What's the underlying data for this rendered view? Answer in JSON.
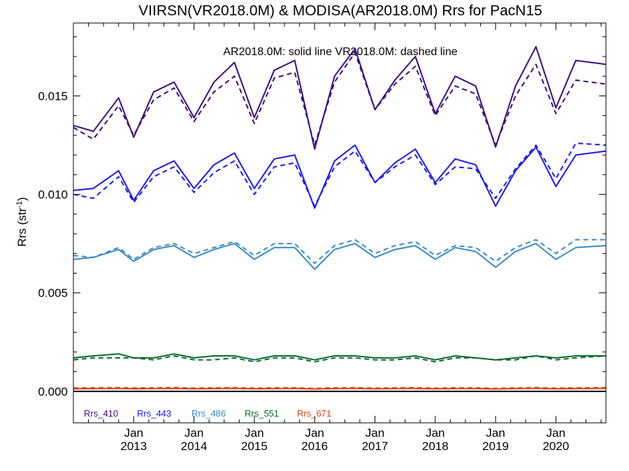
{
  "chart_data": {
    "type": "line",
    "title": "VIIRSN(VR2018.0M) & MODISA(AR2018.0M)  Rrs for PacN15",
    "subtitle": "AR2018.0M: solid line   VR2018.0M: dashed line",
    "ylabel": "Rrs (str",
    "ylabel_sup": "-1",
    "ylabel_close": ")",
    "ylim": [
      -0.0016,
      0.0187
    ],
    "xlim": [
      2012.0,
      2020.83
    ],
    "yticks": [
      {
        "value": 0.0,
        "label": "0.000"
      },
      {
        "value": 0.005,
        "label": "0.005"
      },
      {
        "value": 0.01,
        "label": "0.010"
      },
      {
        "value": 0.015,
        "label": "0.015"
      }
    ],
    "xticks": [
      {
        "value": 2013.0,
        "month": "Jan",
        "year": "2013"
      },
      {
        "value": 2014.0,
        "month": "Jan",
        "year": "2014"
      },
      {
        "value": 2015.0,
        "month": "Jan",
        "year": "2015"
      },
      {
        "value": 2016.0,
        "month": "Jan",
        "year": "2016"
      },
      {
        "value": 2017.0,
        "month": "Jan",
        "year": "2017"
      },
      {
        "value": 2018.0,
        "month": "Jan",
        "year": "2018"
      },
      {
        "value": 2019.0,
        "month": "Jan",
        "year": "2019"
      },
      {
        "value": 2020.0,
        "month": "Jan",
        "year": "2020"
      }
    ],
    "legend_position": "bottom-left",
    "zero_line": 0.0,
    "series": [
      {
        "name": "Rrs_410",
        "color": "#3a0f7a",
        "x": [
          2012.0,
          2012.33,
          2012.75,
          2013.0,
          2013.33,
          2013.67,
          2014.0,
          2014.33,
          2014.67,
          2015.0,
          2015.33,
          2015.67,
          2016.0,
          2016.33,
          2016.67,
          2017.0,
          2017.33,
          2017.67,
          2018.0,
          2018.33,
          2018.67,
          2019.0,
          2019.33,
          2019.67,
          2020.0,
          2020.33,
          2020.83
        ],
        "solid": [
          0.0135,
          0.0132,
          0.0149,
          0.0129,
          0.0152,
          0.0157,
          0.0139,
          0.0157,
          0.0167,
          0.0139,
          0.0163,
          0.0168,
          0.0123,
          0.016,
          0.0174,
          0.0143,
          0.0158,
          0.017,
          0.0141,
          0.016,
          0.0155,
          0.0124,
          0.0155,
          0.0175,
          0.0144,
          0.0168,
          0.0166
        ],
        "dashed": [
          0.0134,
          0.0128,
          0.0145,
          0.013,
          0.0148,
          0.0154,
          0.0137,
          0.0152,
          0.016,
          0.0136,
          0.0159,
          0.0162,
          0.0125,
          0.0157,
          0.0172,
          0.0143,
          0.0156,
          0.0165,
          0.014,
          0.0155,
          0.0151,
          0.0125,
          0.015,
          0.0166,
          0.0141,
          0.0158,
          0.0156
        ]
      },
      {
        "name": "Rrs_443",
        "color": "#1a1aea",
        "x": [
          2012.0,
          2012.33,
          2012.75,
          2013.0,
          2013.33,
          2013.67,
          2014.0,
          2014.33,
          2014.67,
          2015.0,
          2015.33,
          2015.67,
          2016.0,
          2016.33,
          2016.67,
          2017.0,
          2017.33,
          2017.67,
          2018.0,
          2018.33,
          2018.67,
          2019.0,
          2019.33,
          2019.67,
          2020.0,
          2020.33,
          2020.83
        ],
        "solid": [
          0.0102,
          0.0103,
          0.0112,
          0.0097,
          0.0112,
          0.0117,
          0.0103,
          0.0115,
          0.0121,
          0.0103,
          0.0118,
          0.012,
          0.0093,
          0.0117,
          0.0125,
          0.0106,
          0.0116,
          0.0123,
          0.0106,
          0.0118,
          0.0115,
          0.0094,
          0.0112,
          0.0124,
          0.0104,
          0.012,
          0.0122
        ],
        "dashed": [
          0.01,
          0.0098,
          0.0109,
          0.0096,
          0.0109,
          0.0114,
          0.0101,
          0.0111,
          0.0117,
          0.01,
          0.0114,
          0.0116,
          0.0094,
          0.0114,
          0.0122,
          0.0106,
          0.0114,
          0.012,
          0.0105,
          0.0114,
          0.0113,
          0.0098,
          0.0113,
          0.0125,
          0.0108,
          0.0126,
          0.0125
        ]
      },
      {
        "name": "Rrs_486",
        "color": "#3a8ac4",
        "x": [
          2012.0,
          2012.33,
          2012.75,
          2013.0,
          2013.33,
          2013.67,
          2014.0,
          2014.33,
          2014.67,
          2015.0,
          2015.33,
          2015.67,
          2016.0,
          2016.33,
          2016.67,
          2017.0,
          2017.33,
          2017.67,
          2018.0,
          2018.33,
          2018.67,
          2019.0,
          2019.33,
          2019.67,
          2020.0,
          2020.33,
          2020.83
        ],
        "solid": [
          0.0067,
          0.0068,
          0.0072,
          0.0066,
          0.0072,
          0.0074,
          0.0068,
          0.0072,
          0.0075,
          0.0067,
          0.0073,
          0.0073,
          0.0062,
          0.0072,
          0.0075,
          0.0068,
          0.0072,
          0.0074,
          0.0067,
          0.0073,
          0.0071,
          0.0063,
          0.0071,
          0.0075,
          0.0067,
          0.0073,
          0.0074
        ],
        "dashed": [
          0.0069,
          0.0068,
          0.0073,
          0.0067,
          0.0073,
          0.0075,
          0.007,
          0.0073,
          0.0076,
          0.0069,
          0.0075,
          0.0075,
          0.0065,
          0.0074,
          0.0077,
          0.007,
          0.0074,
          0.0076,
          0.0069,
          0.0074,
          0.0073,
          0.0066,
          0.0073,
          0.0077,
          0.007,
          0.0077,
          0.0077
        ]
      },
      {
        "name": "Rrs_551",
        "color": "#0a6a2a",
        "x": [
          2012.0,
          2012.33,
          2012.75,
          2013.0,
          2013.33,
          2013.67,
          2014.0,
          2014.33,
          2014.67,
          2015.0,
          2015.33,
          2015.67,
          2016.0,
          2016.33,
          2016.67,
          2017.0,
          2017.33,
          2017.67,
          2018.0,
          2018.33,
          2018.67,
          2019.0,
          2019.33,
          2019.67,
          2020.0,
          2020.33,
          2020.83
        ],
        "solid": [
          0.0017,
          0.0018,
          0.0019,
          0.0017,
          0.0017,
          0.0019,
          0.0017,
          0.0018,
          0.0018,
          0.0016,
          0.0018,
          0.0018,
          0.0016,
          0.0018,
          0.0018,
          0.0017,
          0.0017,
          0.0018,
          0.0016,
          0.0018,
          0.0017,
          0.0016,
          0.0017,
          0.0018,
          0.0017,
          0.0018,
          0.0018
        ],
        "dashed": [
          0.0016,
          0.0017,
          0.0017,
          0.0017,
          0.0016,
          0.0018,
          0.0016,
          0.0016,
          0.0017,
          0.0015,
          0.0017,
          0.0017,
          0.0015,
          0.0017,
          0.0017,
          0.0016,
          0.0016,
          0.0017,
          0.0015,
          0.0017,
          0.0017,
          0.0016,
          0.0016,
          0.0018,
          0.0016,
          0.0017,
          0.0018
        ]
      },
      {
        "name": "Rrs_671",
        "color": "#d8441a",
        "x": [
          2012.0,
          2012.33,
          2012.75,
          2013.0,
          2013.33,
          2013.67,
          2014.0,
          2014.33,
          2014.67,
          2015.0,
          2015.33,
          2015.67,
          2016.0,
          2016.33,
          2016.67,
          2017.0,
          2017.33,
          2017.67,
          2018.0,
          2018.33,
          2018.67,
          2019.0,
          2019.33,
          2019.67,
          2020.0,
          2020.33,
          2020.83
        ],
        "solid": [
          0.00013,
          0.00014,
          0.00015,
          0.00013,
          0.00014,
          0.00015,
          0.00013,
          0.00014,
          0.00015,
          0.00013,
          0.00014,
          0.00015,
          0.00012,
          0.00014,
          0.00015,
          0.00013,
          0.00014,
          0.00015,
          0.00013,
          0.00014,
          0.00014,
          0.00012,
          0.00014,
          0.00015,
          0.00013,
          0.00014,
          0.00015
        ],
        "dashed": [
          0.00017,
          0.00018,
          0.00019,
          0.00017,
          0.00018,
          0.00019,
          0.00016,
          0.00018,
          0.00019,
          0.00016,
          0.00018,
          0.00018,
          0.00015,
          0.00018,
          0.00019,
          0.00016,
          0.00018,
          0.00019,
          0.00016,
          0.00018,
          0.00018,
          0.00015,
          0.00017,
          0.00019,
          0.00016,
          0.00018,
          0.00019
        ]
      }
    ]
  }
}
